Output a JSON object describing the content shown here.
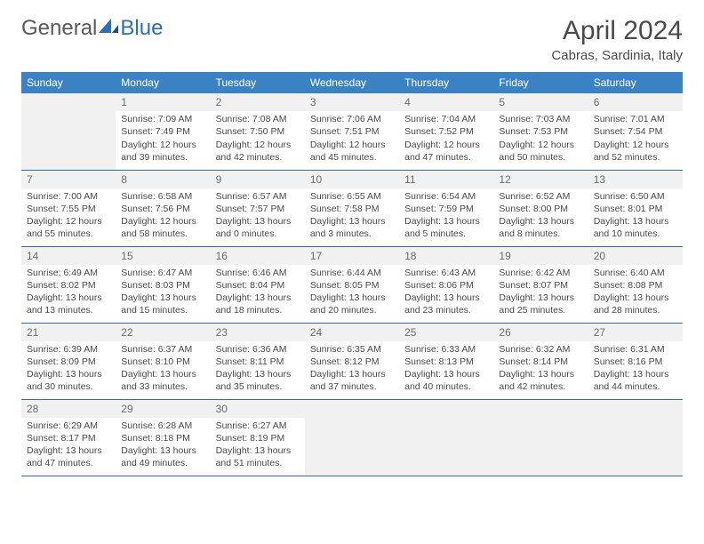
{
  "logo": {
    "text1": "General",
    "text2": "Blue"
  },
  "title": "April 2024",
  "location": "Cabras, Sardinia, Italy",
  "header_bg": "#3b82c4",
  "header_fg": "#ffffff",
  "border_color": "#2d6fb5",
  "empty_bg": "#f1f1f1",
  "weekdays": [
    "Sunday",
    "Monday",
    "Tuesday",
    "Wednesday",
    "Thursday",
    "Friday",
    "Saturday"
  ],
  "weeks": [
    [
      null,
      {
        "n": "1",
        "sr": "7:09 AM",
        "ss": "7:49 PM",
        "dl": "12 hours and 39 minutes."
      },
      {
        "n": "2",
        "sr": "7:08 AM",
        "ss": "7:50 PM",
        "dl": "12 hours and 42 minutes."
      },
      {
        "n": "3",
        "sr": "7:06 AM",
        "ss": "7:51 PM",
        "dl": "12 hours and 45 minutes."
      },
      {
        "n": "4",
        "sr": "7:04 AM",
        "ss": "7:52 PM",
        "dl": "12 hours and 47 minutes."
      },
      {
        "n": "5",
        "sr": "7:03 AM",
        "ss": "7:53 PM",
        "dl": "12 hours and 50 minutes."
      },
      {
        "n": "6",
        "sr": "7:01 AM",
        "ss": "7:54 PM",
        "dl": "12 hours and 52 minutes."
      }
    ],
    [
      {
        "n": "7",
        "sr": "7:00 AM",
        "ss": "7:55 PM",
        "dl": "12 hours and 55 minutes."
      },
      {
        "n": "8",
        "sr": "6:58 AM",
        "ss": "7:56 PM",
        "dl": "12 hours and 58 minutes."
      },
      {
        "n": "9",
        "sr": "6:57 AM",
        "ss": "7:57 PM",
        "dl": "13 hours and 0 minutes."
      },
      {
        "n": "10",
        "sr": "6:55 AM",
        "ss": "7:58 PM",
        "dl": "13 hours and 3 minutes."
      },
      {
        "n": "11",
        "sr": "6:54 AM",
        "ss": "7:59 PM",
        "dl": "13 hours and 5 minutes."
      },
      {
        "n": "12",
        "sr": "6:52 AM",
        "ss": "8:00 PM",
        "dl": "13 hours and 8 minutes."
      },
      {
        "n": "13",
        "sr": "6:50 AM",
        "ss": "8:01 PM",
        "dl": "13 hours and 10 minutes."
      }
    ],
    [
      {
        "n": "14",
        "sr": "6:49 AM",
        "ss": "8:02 PM",
        "dl": "13 hours and 13 minutes."
      },
      {
        "n": "15",
        "sr": "6:47 AM",
        "ss": "8:03 PM",
        "dl": "13 hours and 15 minutes."
      },
      {
        "n": "16",
        "sr": "6:46 AM",
        "ss": "8:04 PM",
        "dl": "13 hours and 18 minutes."
      },
      {
        "n": "17",
        "sr": "6:44 AM",
        "ss": "8:05 PM",
        "dl": "13 hours and 20 minutes."
      },
      {
        "n": "18",
        "sr": "6:43 AM",
        "ss": "8:06 PM",
        "dl": "13 hours and 23 minutes."
      },
      {
        "n": "19",
        "sr": "6:42 AM",
        "ss": "8:07 PM",
        "dl": "13 hours and 25 minutes."
      },
      {
        "n": "20",
        "sr": "6:40 AM",
        "ss": "8:08 PM",
        "dl": "13 hours and 28 minutes."
      }
    ],
    [
      {
        "n": "21",
        "sr": "6:39 AM",
        "ss": "8:09 PM",
        "dl": "13 hours and 30 minutes."
      },
      {
        "n": "22",
        "sr": "6:37 AM",
        "ss": "8:10 PM",
        "dl": "13 hours and 33 minutes."
      },
      {
        "n": "23",
        "sr": "6:36 AM",
        "ss": "8:11 PM",
        "dl": "13 hours and 35 minutes."
      },
      {
        "n": "24",
        "sr": "6:35 AM",
        "ss": "8:12 PM",
        "dl": "13 hours and 37 minutes."
      },
      {
        "n": "25",
        "sr": "6:33 AM",
        "ss": "8:13 PM",
        "dl": "13 hours and 40 minutes."
      },
      {
        "n": "26",
        "sr": "6:32 AM",
        "ss": "8:14 PM",
        "dl": "13 hours and 42 minutes."
      },
      {
        "n": "27",
        "sr": "6:31 AM",
        "ss": "8:16 PM",
        "dl": "13 hours and 44 minutes."
      }
    ],
    [
      {
        "n": "28",
        "sr": "6:29 AM",
        "ss": "8:17 PM",
        "dl": "13 hours and 47 minutes."
      },
      {
        "n": "29",
        "sr": "6:28 AM",
        "ss": "8:18 PM",
        "dl": "13 hours and 49 minutes."
      },
      {
        "n": "30",
        "sr": "6:27 AM",
        "ss": "8:19 PM",
        "dl": "13 hours and 51 minutes."
      },
      null,
      null,
      null,
      null
    ]
  ],
  "labels": {
    "sunrise": "Sunrise:",
    "sunset": "Sunset:",
    "daylight": "Daylight:"
  }
}
